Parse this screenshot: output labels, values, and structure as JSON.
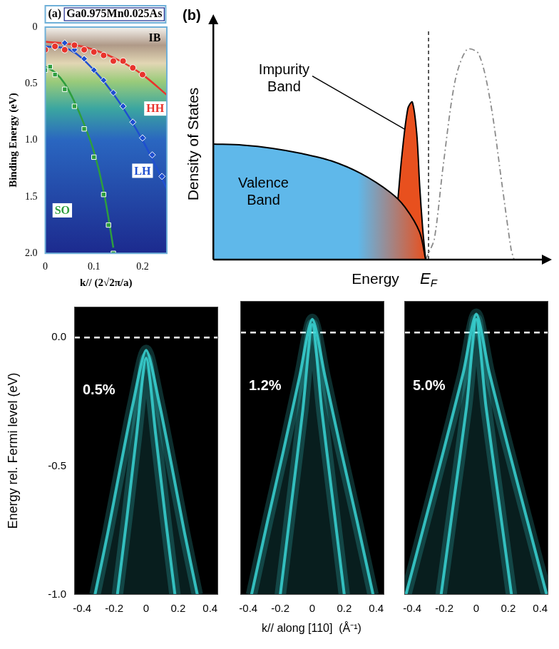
{
  "chart_data": [
    {
      "type": "scatter",
      "panel": "(a)",
      "title": "Ga0.975Mn0.025As",
      "x_label": "k// (2√2π/a)",
      "y_label": "Binding Energy (eV)",
      "xlim": [
        0,
        0.25
      ],
      "ylim": [
        2.0,
        0
      ],
      "xticks": [
        0,
        0.1,
        0.2
      ],
      "yticks": [
        0,
        0.5,
        {
          "value": 1,
          "label": "1.0"
        },
        1.5,
        {
          "value": 2,
          "label": "2.0"
        }
      ],
      "grid": false,
      "annotations": [
        {
          "text": "IB",
          "x": 0.225,
          "y": 0.1
        }
      ],
      "series": [
        {
          "name": "HH",
          "color": "#e8342c",
          "marker": "circle",
          "line_style": "solid",
          "x": [
            0,
            0.02,
            0.04,
            0.06,
            0.08,
            0.1,
            0.12,
            0.14,
            0.16,
            0.18,
            0.2
          ],
          "values": [
            0.2,
            0.17,
            0.2,
            0.16,
            0.2,
            0.22,
            0.25,
            0.3,
            0.3,
            0.36,
            0.42
          ],
          "fit_x": [
            0,
            0.05,
            0.1,
            0.15,
            0.2,
            0.25
          ],
          "fit_values": [
            0.13,
            0.15,
            0.2,
            0.29,
            0.42,
            0.6
          ],
          "label_at": [
            0.226,
            0.72
          ]
        },
        {
          "name": "LH",
          "color": "#1f4fd0",
          "marker": "diamond",
          "line_style": "solid",
          "x": [
            0.02,
            0.04,
            0.06,
            0.08,
            0.1,
            0.12,
            0.14,
            0.16,
            0.18,
            0.2,
            0.22,
            0.24
          ],
          "values": [
            0.18,
            0.14,
            0.2,
            0.28,
            0.38,
            0.47,
            0.58,
            0.7,
            0.84,
            0.98,
            1.13,
            1.32
          ],
          "fit_x": [
            0,
            0.05,
            0.1,
            0.15,
            0.2,
            0.25
          ],
          "fit_values": [
            0.17,
            0.2,
            0.38,
            0.65,
            1.0,
            1.43
          ],
          "label_at": [
            0.2,
            1.27
          ]
        },
        {
          "name": "SO",
          "color": "#2e9e3e",
          "marker": "square",
          "line_style": "solid",
          "x": [
            0,
            0.01,
            0.02,
            0.04,
            0.06,
            0.08,
            0.1,
            0.12,
            0.13,
            0.14
          ],
          "values": [
            0.38,
            0.35,
            0.42,
            0.55,
            0.7,
            0.9,
            1.15,
            1.48,
            1.75,
            2.0
          ],
          "fit_x": [
            0,
            0.02,
            0.04,
            0.06,
            0.08,
            0.1,
            0.12,
            0.14
          ],
          "fit_values": [
            0.35,
            0.4,
            0.5,
            0.66,
            0.86,
            1.1,
            1.45,
            1.95
          ],
          "label_at": [
            0.035,
            1.62
          ]
        }
      ]
    },
    {
      "type": "line",
      "panel": "(b)",
      "x_label": "Energy",
      "y_label": "Density of States",
      "xlim": [
        0,
        1.1
      ],
      "ylim": [
        0,
        1.1
      ],
      "tick_labels": false,
      "grid": false,
      "fermi_level": {
        "text": "EF",
        "x": 0.73
      },
      "series": [
        {
          "name": "Valence Band",
          "type": "area",
          "color": "#5fb8ea",
          "x": [
            0,
            0.1,
            0.2,
            0.3,
            0.4,
            0.5,
            0.6,
            0.65,
            0.7,
            0.72
          ],
          "values": [
            0.55,
            0.545,
            0.53,
            0.505,
            0.47,
            0.41,
            0.32,
            0.25,
            0.13,
            0
          ],
          "label_at": [
            0.17,
            0.32
          ]
        },
        {
          "name": "Impurity Band",
          "type": "area",
          "color": "#e8501e",
          "x": [
            0.6,
            0.62,
            0.64,
            0.66,
            0.675,
            0.69,
            0.7,
            0.71,
            0.72
          ],
          "values": [
            0,
            0.2,
            0.5,
            0.72,
            0.75,
            0.6,
            0.35,
            0.15,
            0
          ],
          "label_at": [
            0.24,
            0.86
          ],
          "arrow_to": [
            0.65,
            0.62
          ]
        },
        {
          "type": "line",
          "color": "#8a8a8a",
          "line_style": "dashdot",
          "x": [
            0.72,
            0.73,
            0.75,
            0.78,
            0.82,
            0.86,
            0.9,
            0.94,
            0.98,
            1.01,
            1.02
          ],
          "values": [
            0,
            0.03,
            0.1,
            0.45,
            0.85,
            1.0,
            0.98,
            0.75,
            0.35,
            0.05,
            0
          ]
        }
      ]
    },
    {
      "type": "line",
      "label": "0.5%",
      "y_label": "Energy rel. Fermi level (eV)",
      "xlim": [
        -0.45,
        0.45
      ],
      "ylim": [
        -1.0,
        0.12
      ],
      "xticks": [
        -0.4,
        -0.2,
        0,
        0.2,
        0.4
      ],
      "yticks": [
        {
          "value": -1,
          "label": "-1.0"
        },
        -0.5,
        {
          "value": 0,
          "label": "0.0"
        }
      ],
      "grid": false,
      "color": "#39d5d5",
      "fermi_level": 0,
      "bands": [
        {
          "k": [
            -0.32,
            -0.24,
            -0.16,
            -0.08,
            0,
            0.08,
            0.16,
            0.24,
            0.32
          ],
          "energy": [
            -1.0,
            -0.76,
            -0.5,
            -0.25,
            -0.05,
            -0.25,
            -0.5,
            -0.76,
            -1.0
          ]
        },
        {
          "k": [
            -0.18,
            -0.12,
            -0.06,
            0,
            0.06,
            0.12,
            0.18
          ],
          "energy": [
            -1.0,
            -0.7,
            -0.38,
            -0.08,
            -0.38,
            -0.7,
            -1.0
          ]
        }
      ]
    },
    {
      "type": "line",
      "label": "1.2%",
      "x_label": "k// along [110]  (Å⁻¹)",
      "xlim": [
        -0.45,
        0.45
      ],
      "ylim": [
        -1.0,
        0.12
      ],
      "xticks": [
        -0.4,
        -0.2,
        0,
        0.2,
        0.4
      ],
      "tick_labels": "x",
      "grid": false,
      "color": "#39d5d5",
      "fermi_level": 0,
      "bands": [
        {
          "k": [
            -0.38,
            -0.28,
            -0.18,
            -0.08,
            0,
            0.08,
            0.18,
            0.28,
            0.38
          ],
          "energy": [
            -1.0,
            -0.72,
            -0.45,
            -0.17,
            0.05,
            -0.17,
            -0.45,
            -0.72,
            -1.0
          ]
        },
        {
          "k": [
            -0.2,
            -0.13,
            -0.06,
            0,
            0.06,
            0.13,
            0.2
          ],
          "energy": [
            -1.0,
            -0.65,
            -0.3,
            0.03,
            -0.3,
            -0.65,
            -1.0
          ]
        }
      ]
    },
    {
      "type": "line",
      "label": "5.0%",
      "xlim": [
        -0.45,
        0.45
      ],
      "ylim": [
        -1.0,
        0.12
      ],
      "xticks": [
        -0.4,
        -0.2,
        0,
        0.2,
        0.4
      ],
      "tick_labels": "x",
      "grid": false,
      "color": "#39d5d5",
      "fermi_level": 0,
      "bands": [
        {
          "k": [
            -0.44,
            -0.32,
            -0.2,
            -0.08,
            0,
            0.08,
            0.2,
            0.32,
            0.44
          ],
          "energy": [
            -1.0,
            -0.72,
            -0.44,
            -0.15,
            0.07,
            -0.15,
            -0.44,
            -0.72,
            -1.0
          ]
        },
        {
          "k": [
            -0.22,
            -0.14,
            -0.06,
            0,
            0.06,
            0.14,
            0.22
          ],
          "energy": [
            -1.0,
            -0.64,
            -0.28,
            0.05,
            -0.28,
            -0.64,
            -1.0
          ]
        }
      ]
    }
  ]
}
